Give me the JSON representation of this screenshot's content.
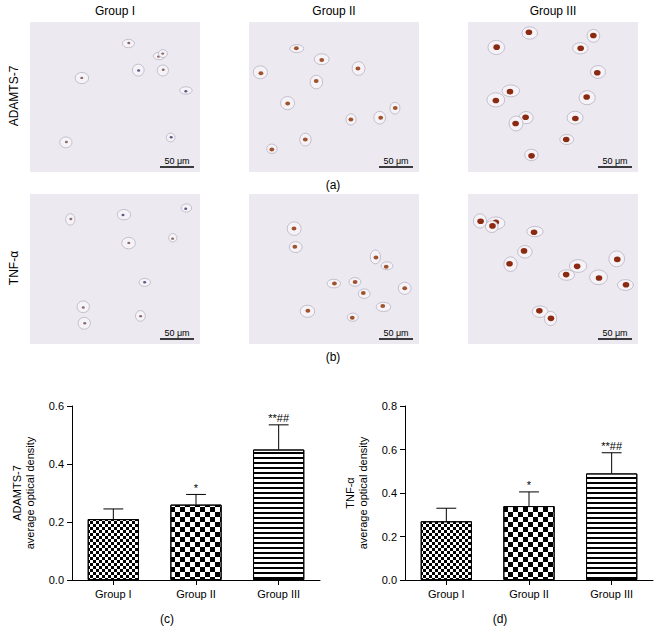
{
  "figure": {
    "columns": [
      "Group I",
      "Group II",
      "Group III"
    ],
    "rows": [
      {
        "label": "ADAMTS-7",
        "panel": "(a)"
      },
      {
        "label": "TNF-α",
        "panel": "(b)"
      }
    ],
    "scale_bar": "50 μm"
  },
  "chart_data": [
    {
      "type": "bar",
      "panel": "(c)",
      "ylabel": "ADAMTS-7\naverage optical density",
      "categories": [
        "Group I",
        "Group II",
        "Group III"
      ],
      "values": [
        0.21,
        0.26,
        0.45
      ],
      "errors": [
        0.035,
        0.035,
        0.085
      ],
      "annotations": [
        null,
        "*",
        "**##"
      ],
      "color": "#000000",
      "ylim": [
        0,
        0.6
      ],
      "yticks": [
        {
          "value": 0,
          "label": "0.0"
        },
        0.2,
        0.4,
        0.6
      ],
      "grid": false
    },
    {
      "type": "bar",
      "panel": "(d)",
      "ylabel": "TNF-α\naverage optical density",
      "categories": [
        "Group I",
        "Group II",
        "Group III"
      ],
      "values": [
        0.27,
        0.34,
        0.49
      ],
      "errors": [
        0.06,
        0.065,
        0.095
      ],
      "annotations": [
        null,
        "*",
        "**##"
      ],
      "color": "#000000",
      "ylim": [
        0,
        0.8
      ],
      "yticks": [
        {
          "value": 0,
          "label": "0.0"
        },
        0.2,
        0.4,
        0.6,
        0.8
      ],
      "grid": false
    }
  ]
}
